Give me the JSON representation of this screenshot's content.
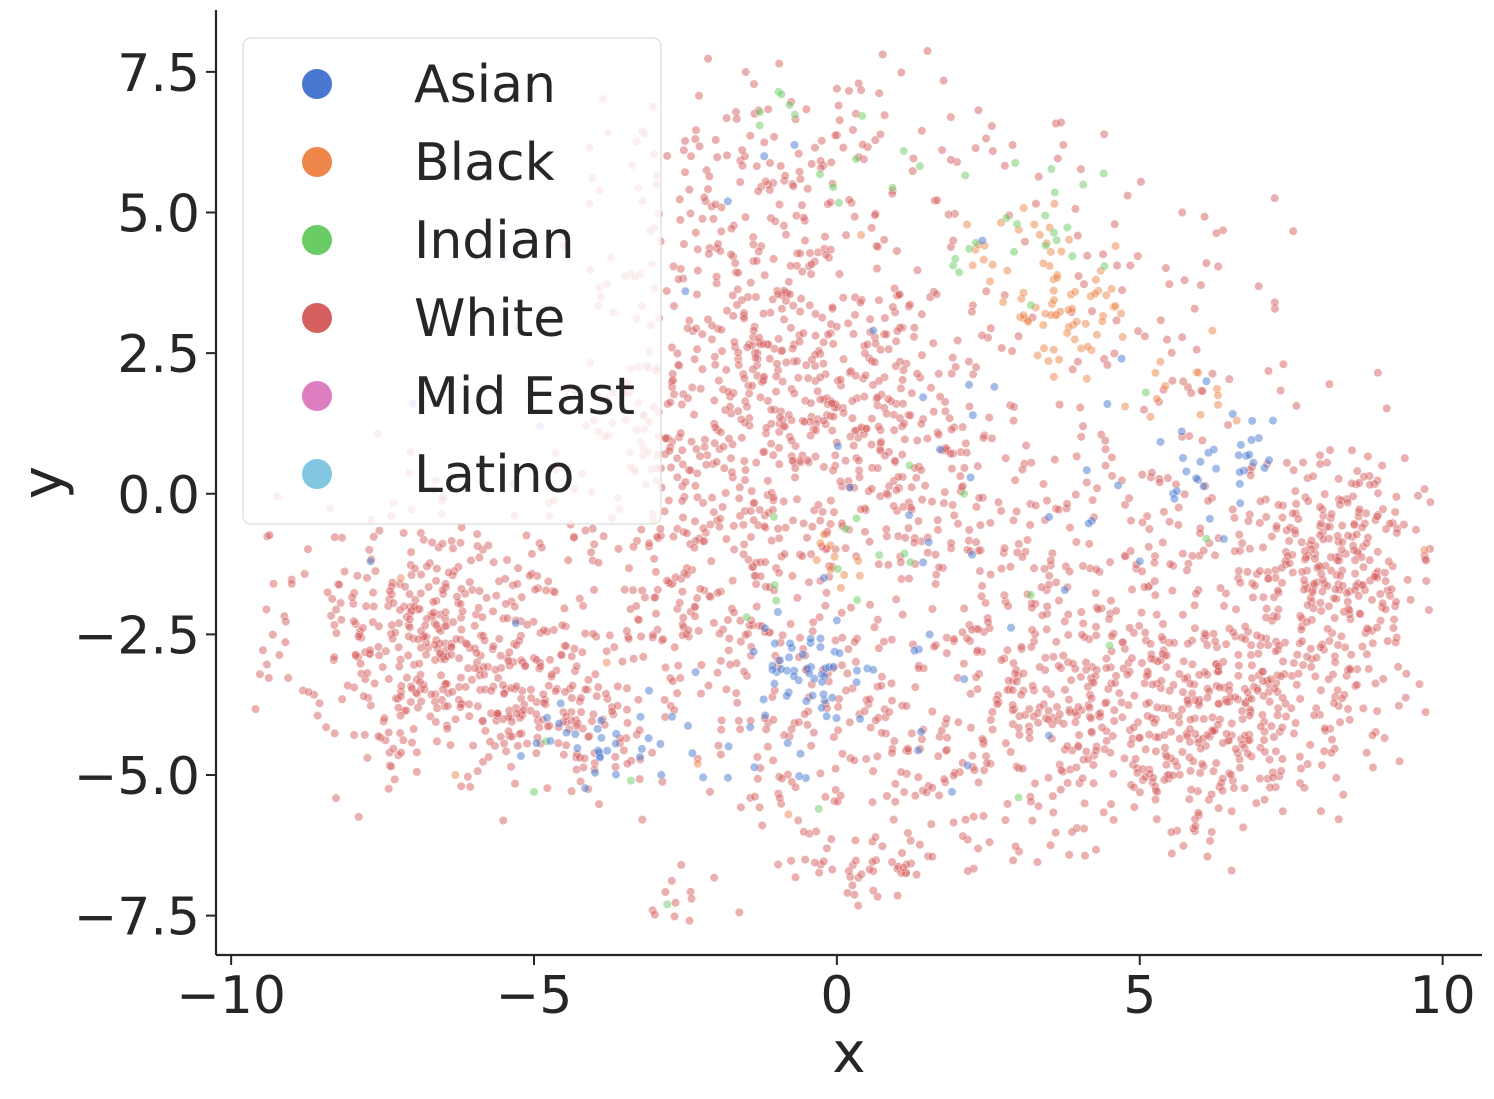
{
  "chart_data": {
    "type": "scatter",
    "title": "",
    "xlabel": "x",
    "ylabel": "y",
    "xlim": [
      -10.25,
      10.65
    ],
    "ylim": [
      -8.2,
      8.6
    ],
    "xticks": [
      -10,
      -5,
      0,
      5,
      10
    ],
    "yticks": [
      -7.5,
      -5.0,
      -2.5,
      0.0,
      2.5,
      5.0,
      7.5
    ],
    "xtick_labels": [
      "−10",
      "−5",
      "0",
      "5",
      "10"
    ],
    "ytick_labels": [
      "−7.5",
      "−5.0",
      "−2.5",
      "0.0",
      "2.5",
      "5.0",
      "7.5"
    ],
    "grid": false,
    "legend_position": "upper-left",
    "series": [
      {
        "name": "Asian",
        "color": "#4878d0",
        "clusters": [
          {
            "cx": -0.5,
            "cy": -3.1,
            "sx": 0.35,
            "sy": 0.35,
            "n": 40
          },
          {
            "cx": -3.5,
            "cy": -4.4,
            "sx": 0.8,
            "sy": 0.3,
            "n": 30
          },
          {
            "cx": 6.4,
            "cy": 0.5,
            "sx": 0.5,
            "sy": 0.5,
            "n": 28
          },
          {
            "cx": 1.0,
            "cy": -2.0,
            "sx": 1.4,
            "sy": 1.6,
            "n": 25
          },
          {
            "cx": -1.5,
            "cy": -4.2,
            "sx": 1.0,
            "sy": 0.7,
            "n": 15
          },
          {
            "cx": 3.5,
            "cy": -1.0,
            "sx": 1.5,
            "sy": 1.2,
            "n": 14
          }
        ],
        "points": [
          [
            -1.2,
            6.0
          ],
          [
            2.4,
            4.5
          ],
          [
            -5.5,
            4.2
          ],
          [
            -4.9,
            1.2
          ],
          [
            6.1,
            2.0
          ],
          [
            -2.5,
            3.6
          ],
          [
            -5.3,
            -2.3
          ],
          [
            -7.7,
            -1.2
          ],
          [
            -7.0,
            1.6
          ],
          [
            4.7,
            2.4
          ],
          [
            3.5,
            -4.3
          ],
          [
            5.0,
            -1.2
          ],
          [
            7.2,
            1.3
          ],
          [
            -0.7,
            6.2
          ],
          [
            -1.8,
            5.2
          ],
          [
            1.9,
            -5.3
          ],
          [
            2.6,
            1.9
          ],
          [
            0.6,
            2.9
          ]
        ]
      },
      {
        "name": "Black",
        "color": "#ee854a",
        "clusters": [
          {
            "cx": 3.7,
            "cy": 3.2,
            "sx": 0.45,
            "sy": 0.55,
            "n": 60
          },
          {
            "cx": 2.9,
            "cy": 4.5,
            "sx": 0.6,
            "sy": 0.4,
            "n": 18
          },
          {
            "cx": 5.6,
            "cy": 1.9,
            "sx": 0.5,
            "sy": 0.3,
            "n": 12
          },
          {
            "cx": 0.0,
            "cy": -1.3,
            "sx": 0.3,
            "sy": 0.3,
            "n": 10
          }
        ],
        "points": [
          [
            9.7,
            -1.0
          ],
          [
            -6.3,
            -5.0
          ],
          [
            -0.8,
            -5.7
          ],
          [
            -2.3,
            -4.8
          ],
          [
            6.6,
            1.3
          ],
          [
            -7.2,
            -1.5
          ],
          [
            -3.8,
            -3.0
          ],
          [
            0.4,
            4.6
          ],
          [
            6.2,
            2.9
          ]
        ]
      },
      {
        "name": "Indian",
        "color": "#6acc64",
        "clusters": [
          {
            "cx": 2.9,
            "cy": 4.8,
            "sx": 0.9,
            "sy": 0.6,
            "n": 22
          },
          {
            "cx": -1.0,
            "cy": 7.0,
            "sx": 0.25,
            "sy": 0.2,
            "n": 6
          },
          {
            "cx": 0.5,
            "cy": 5.8,
            "sx": 0.5,
            "sy": 0.4,
            "n": 8
          },
          {
            "cx": 0.0,
            "cy": -1.0,
            "sx": 0.8,
            "sy": 0.6,
            "n": 10
          }
        ],
        "points": [
          [
            -2.8,
            -7.3
          ],
          [
            -3.4,
            -5.1
          ],
          [
            -5.0,
            -5.3
          ],
          [
            -4.8,
            -4.4
          ],
          [
            3.0,
            -5.4
          ],
          [
            5.1,
            1.8
          ],
          [
            6.1,
            -0.8
          ],
          [
            -0.3,
            -5.6
          ],
          [
            -1.0,
            -1.9
          ],
          [
            1.2,
            0.5
          ],
          [
            2.1,
            0.0
          ],
          [
            3.2,
            -1.8
          ],
          [
            4.5,
            -2.7
          ]
        ]
      },
      {
        "name": "White",
        "color": "#d65f5f",
        "clusters": [
          {
            "cx": -6.5,
            "cy": -2.9,
            "sx": 1.2,
            "sy": 1.1,
            "n": 360
          },
          {
            "cx": -4.5,
            "cy": -3.8,
            "sx": 1.0,
            "sy": 0.8,
            "n": 120
          },
          {
            "cx": -1.2,
            "cy": 3.0,
            "sx": 1.4,
            "sy": 1.9,
            "n": 430
          },
          {
            "cx": -2.0,
            "cy": 0.0,
            "sx": 1.5,
            "sy": 1.5,
            "n": 220
          },
          {
            "cx": 0.8,
            "cy": 1.6,
            "sx": 1.1,
            "sy": 1.2,
            "n": 170
          },
          {
            "cx": 8.4,
            "cy": -1.5,
            "sx": 0.8,
            "sy": 1.1,
            "n": 280
          },
          {
            "cx": 6.0,
            "cy": -4.2,
            "sx": 1.4,
            "sy": 1.0,
            "n": 320
          },
          {
            "cx": 6.2,
            "cy": -1.8,
            "sx": 1.4,
            "sy": 1.3,
            "n": 200
          },
          {
            "cx": 3.5,
            "cy": -3.8,
            "sx": 1.4,
            "sy": 1.3,
            "n": 220
          },
          {
            "cx": 0.5,
            "cy": -4.5,
            "sx": 1.6,
            "sy": 1.2,
            "n": 170
          },
          {
            "cx": 0.6,
            "cy": -6.6,
            "sx": 0.6,
            "sy": 0.3,
            "n": 35
          },
          {
            "cx": -2.0,
            "cy": -2.0,
            "sx": 1.5,
            "sy": 1.2,
            "n": 180
          },
          {
            "cx": 2.8,
            "cy": -0.5,
            "sx": 1.3,
            "sy": 1.2,
            "n": 120
          },
          {
            "cx": 5.5,
            "cy": 3.0,
            "sx": 1.4,
            "sy": 1.2,
            "n": 60
          },
          {
            "cx": -7.3,
            "cy": -1.2,
            "sx": 0.9,
            "sy": 0.9,
            "n": 60
          },
          {
            "cx": -1.2,
            "cy": 6.5,
            "sx": 1.4,
            "sy": 0.6,
            "n": 45
          },
          {
            "cx": 2.0,
            "cy": 5.5,
            "sx": 1.2,
            "sy": 0.9,
            "n": 35
          },
          {
            "cx": -2.8,
            "cy": -7.1,
            "sx": 0.2,
            "sy": 0.3,
            "n": 8
          }
        ],
        "points": [
          [
            -9.3,
            -1.6
          ],
          [
            -9.0,
            -1.6
          ],
          [
            9.4,
            -3.2
          ],
          [
            9.0,
            0.5
          ],
          [
            3.7,
            6.6
          ],
          [
            2.9,
            6.2
          ],
          [
            0.0,
            7.2
          ],
          [
            -3.8,
            -2.8
          ],
          [
            -2.4,
            -7.2
          ],
          [
            4.8,
            5.3
          ],
          [
            5.7,
            5.0
          ],
          [
            6.1,
            4.1
          ]
        ]
      },
      {
        "name": "Mid East",
        "color": "#dc7ec0",
        "clusters": [],
        "points": []
      },
      {
        "name": "Latino",
        "color": "#82c6e2",
        "clusters": [],
        "points": []
      }
    ]
  }
}
